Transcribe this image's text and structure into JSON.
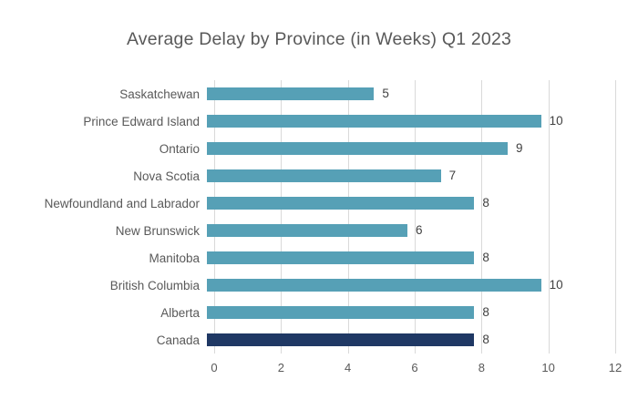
{
  "chart_data": {
    "type": "bar",
    "orientation": "horizontal",
    "title": "Average Delay by Province (in Weeks) Q1 2023",
    "categories": [
      "Saskatchewan",
      "Prince Edward Island",
      "Ontario",
      "Nova Scotia",
      "Newfoundland and Labrador",
      "New Brunswick",
      "Manitoba",
      "British Columbia",
      "Alberta",
      "Canada"
    ],
    "values": [
      5,
      10,
      9,
      7,
      8,
      6,
      8,
      10,
      8,
      8
    ],
    "xlabel": "",
    "ylabel": "",
    "xlim": [
      0,
      12
    ],
    "x_ticks": [
      0,
      2,
      4,
      6,
      8,
      10,
      12
    ],
    "grid": "vertical-only",
    "legend": "none",
    "data_labels": true,
    "highlight_category": "Canada",
    "colors": {
      "bar": "#56a0b6",
      "highlight_bar": "#1f3864",
      "gridline": "#d9d9d9",
      "title_text": "#595959",
      "category_text": "#595959",
      "tick_text": "#595959",
      "value_text": "#404040"
    }
  }
}
